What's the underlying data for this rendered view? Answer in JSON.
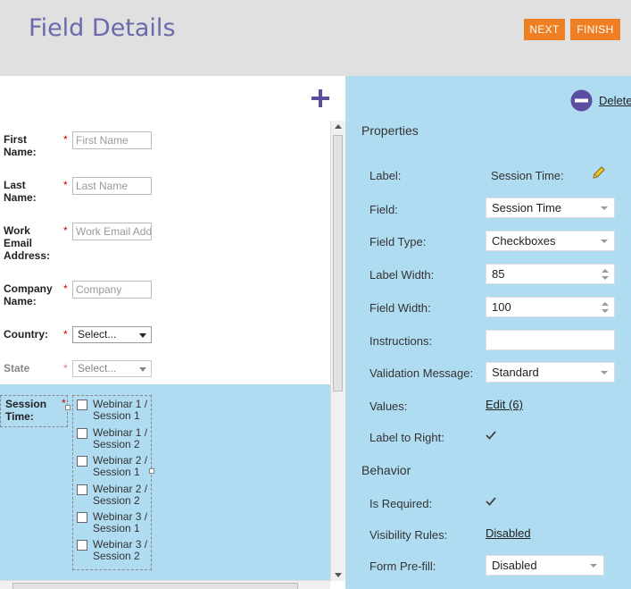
{
  "header": {
    "title": "Field Details",
    "next_label": "NEXT",
    "finish_label": "FINISH"
  },
  "form": {
    "fields": [
      {
        "label": "First Name:",
        "placeholder": "First Name",
        "type": "text",
        "required": true
      },
      {
        "label": "Last Name:",
        "placeholder": "Last Name",
        "type": "text",
        "required": true
      },
      {
        "label": "Work Email Address:",
        "placeholder": "Work Email Address",
        "type": "text",
        "required": true
      },
      {
        "label": "Company Name:",
        "placeholder": "Company",
        "type": "text",
        "required": true
      },
      {
        "label": "Country:",
        "value": "Select...",
        "type": "select",
        "required": true
      },
      {
        "label": "State",
        "value": "Select...",
        "type": "select",
        "required": true,
        "disabled": true
      }
    ],
    "required_mark": "*",
    "session_field": {
      "label": "Session Time:",
      "options": [
        "Webinar 1 / Session 1",
        "Webinar 1 / Session 2",
        "Webinar 2 / Session 1",
        "Webinar 2 / Session 2",
        "Webinar 3 / Session 1",
        "Webinar 3 / Session 2"
      ]
    }
  },
  "panel": {
    "delete_label": "Delete",
    "properties_title": "Properties",
    "properties": {
      "label_label": "Label:",
      "label_value": "Session Time:",
      "field_label": "Field:",
      "field_value": "Session Time",
      "field_type_label": "Field Type:",
      "field_type_value": "Checkboxes",
      "label_width_label": "Label Width:",
      "label_width_value": "85",
      "field_width_label": "Field Width:",
      "field_width_value": "100",
      "instructions_label": "Instructions:",
      "instructions_value": "",
      "validation_label": "Validation Message:",
      "validation_value": "Standard",
      "values_label": "Values:",
      "values_link": "Edit (6)",
      "label_to_right_label": "Label to Right:",
      "label_to_right_checked": true
    },
    "behavior_title": "Behavior",
    "behavior": {
      "is_required_label": "Is Required:",
      "is_required_checked": true,
      "visibility_label": "Visibility Rules:",
      "visibility_link": "Disabled",
      "prefill_label": "Form Pre-fill:",
      "prefill_value": "Disabled"
    }
  },
  "colors": {
    "accent_orange": "#ee7f22",
    "title_purple": "#6b6aab",
    "panel_blue": "#b0dcf2",
    "required_red": "#cc0000"
  },
  "icons": [
    "add-icon",
    "delete-icon",
    "pencil-icon",
    "checkmark-icon"
  ]
}
